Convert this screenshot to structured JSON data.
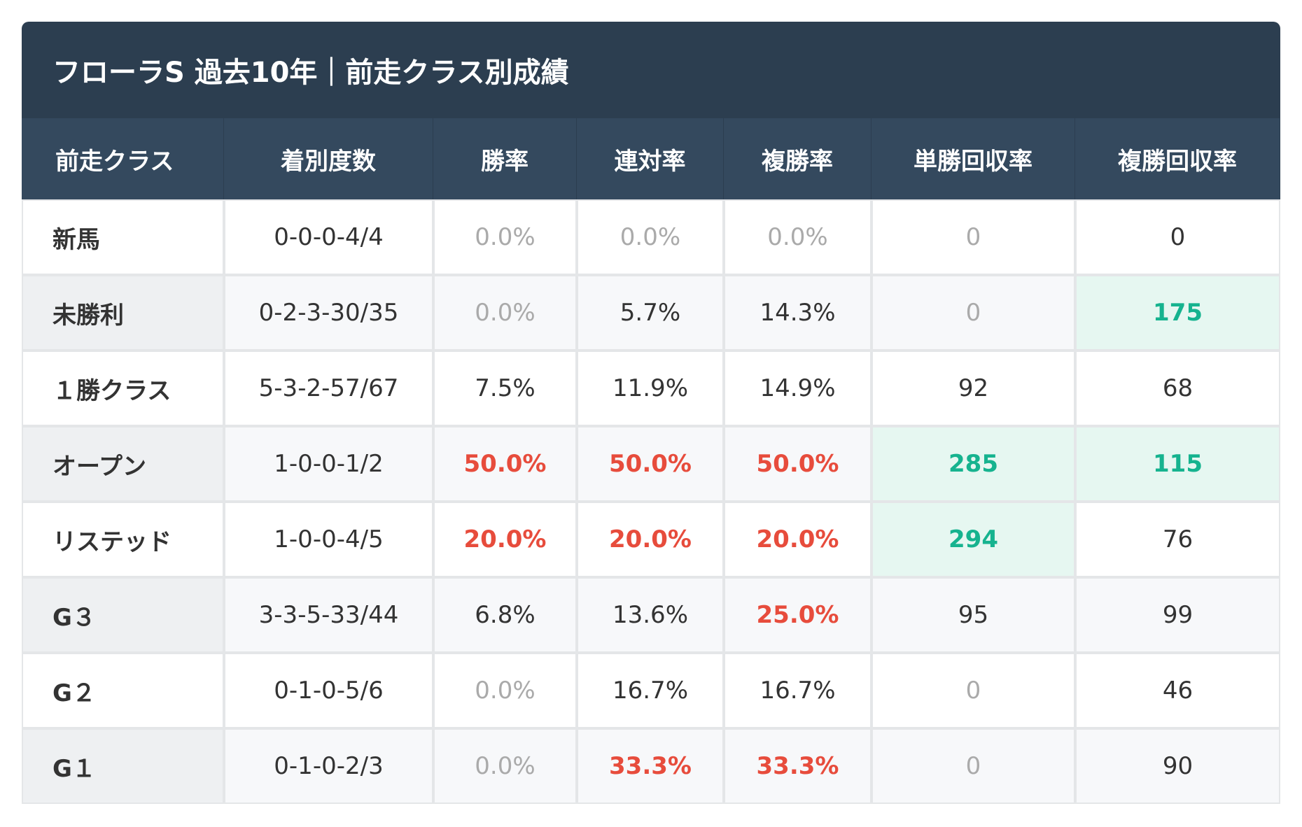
{
  "header": {
    "title": "フローラS 過去10年｜前走クラス別成績"
  },
  "table": {
    "columns": [
      "前走クラス",
      "着別度数",
      "勝率",
      "連対率",
      "複勝率",
      "単勝回収率",
      "複勝回収率"
    ],
    "rows": [
      [
        "新馬",
        "0-0-0-4/4",
        "0.0%",
        "0.0%",
        "0.0%",
        "0",
        "0"
      ],
      [
        "未勝利",
        "0-2-3-30/35",
        "0.0%",
        "5.7%",
        "14.3%",
        "0",
        "175"
      ],
      [
        "１勝クラス",
        "5-3-2-57/67",
        "7.5%",
        "11.9%",
        "14.9%",
        "92",
        "68"
      ],
      [
        "オープン",
        "1-0-0-1/2",
        "50.0%",
        "50.0%",
        "50.0%",
        "285",
        "115"
      ],
      [
        "リステッド",
        "1-0-0-4/5",
        "20.0%",
        "20.0%",
        "20.0%",
        "294",
        "76"
      ],
      [
        "G３",
        "3-3-5-33/44",
        "6.8%",
        "13.6%",
        "25.0%",
        "95",
        "99"
      ],
      [
        "G２",
        "0-1-0-5/6",
        "0.0%",
        "16.7%",
        "16.7%",
        "0",
        "46"
      ],
      [
        "G１",
        "0-1-0-2/3",
        "0.0%",
        "33.3%",
        "33.3%",
        "0",
        "90"
      ]
    ],
    "cell_styles": [
      [
        "label",
        "normal",
        "muted",
        "muted",
        "muted",
        "muted",
        "normal"
      ],
      [
        "label",
        "normal",
        "muted",
        "normal",
        "normal",
        "muted",
        "green"
      ],
      [
        "label",
        "normal",
        "normal",
        "normal",
        "normal",
        "normal",
        "normal"
      ],
      [
        "label",
        "normal",
        "red",
        "red",
        "red",
        "green",
        "green"
      ],
      [
        "label",
        "normal",
        "red",
        "red",
        "red",
        "green",
        "normal"
      ],
      [
        "label",
        "normal",
        "normal",
        "normal",
        "red",
        "normal",
        "normal"
      ],
      [
        "label",
        "normal",
        "muted",
        "normal",
        "normal",
        "muted",
        "normal"
      ],
      [
        "label",
        "normal",
        "muted",
        "red",
        "red",
        "muted",
        "normal"
      ]
    ]
  }
}
